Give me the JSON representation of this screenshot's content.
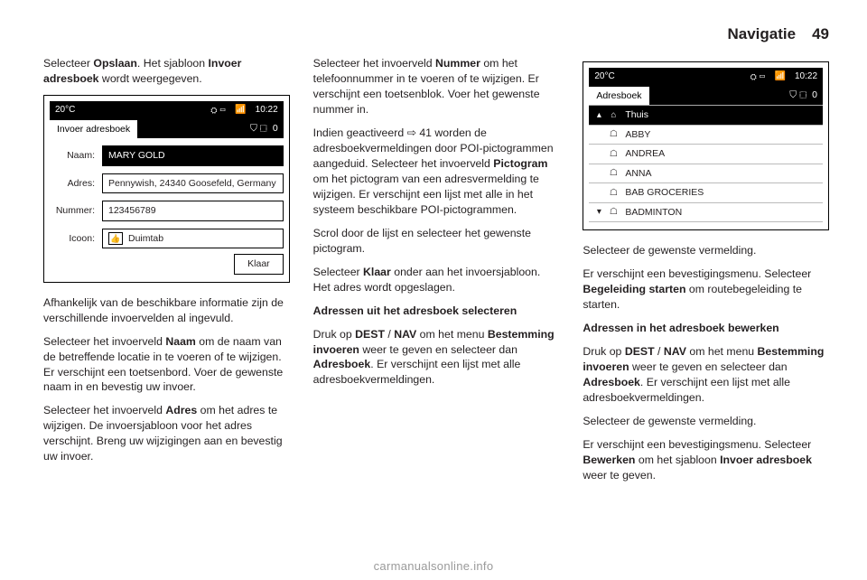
{
  "header": {
    "section": "Navigatie",
    "page": "49"
  },
  "col1": {
    "p1a": "Selecteer ",
    "p1b": "Opslaan",
    "p1c": ". Het sjabloon ",
    "p1d": "Invoer adresboek",
    "p1e": " wordt weergegeven.",
    "p2": "Afhankelijk van de beschikbare informatie zijn de verschillende invoervelden al ingevuld.",
    "p3a": "Selecteer het invoerveld ",
    "p3b": "Naam",
    "p3c": " om de naam van de betreffende locatie in te voeren of te wijzigen. Er verschijnt een toetsenbord. Voer de gewenste naam in en bevestig uw invoer.",
    "p4a": "Selecteer het invoerveld ",
    "p4b": "Adres",
    "p4c": " om het adres te wijzigen. De invoersjabloon voor het adres verschijnt. Breng uw wijzigingen aan en bevestig uw invoer."
  },
  "screenshot1": {
    "temp": "20°C",
    "clock": "10:22",
    "title": "Invoer adresboek",
    "rightnum": "0",
    "fields": {
      "naam_label": "Naam:",
      "naam_value": "MARY GOLD",
      "adres_label": "Adres:",
      "adres_value": "Pennywish, 24340 Goosefeld, Germany",
      "nummer_label": "Nummer:",
      "nummer_value": "123456789",
      "icoon_label": "Icoon:",
      "icoon_value": "Duimtab"
    },
    "footer_btn": "Klaar"
  },
  "col2": {
    "p1a": "Selecteer het invoerveld ",
    "p1b": "Nummer",
    "p1c": " om het telefoonnummer in te voeren of te wijzigen. Er verschijnt een toetsenblok. Voer het gewenste nummer in.",
    "p2a": "Indien geactiveerd ",
    "p2b": "⇨ 41",
    "p2c": " worden de adresboekvermeldingen door POI-pictogrammen aangeduid. Selecteer het invoerveld ",
    "p2d": "Pictogram",
    "p2e": " om het pictogram van een adresvermelding te wijzigen. Er verschijnt een lijst met alle in het systeem beschikbare POI-pictogrammen.",
    "p3": "Scrol door de lijst en selecteer het gewenste pictogram.",
    "p4a": "Selecteer ",
    "p4b": "Klaar",
    "p4c": " onder aan het invoersjabloon. Het adres wordt opgeslagen.",
    "h1": "Adressen uit het adresboek selecteren",
    "p5a": "Druk op ",
    "p5b": "DEST",
    "p5c": " / ",
    "p5d": "NAV",
    "p5e": " om het menu ",
    "p5f": "Bestemming invoeren",
    "p5g": " weer te geven en selecteer dan ",
    "p5h": "Adresboek",
    "p5i": ". Er verschijnt een lijst met alle adresboekvermeldingen."
  },
  "screenshot2": {
    "temp": "20°C",
    "clock": "10:22",
    "title": "Adresboek",
    "rightnum": "0",
    "rows": [
      {
        "label": "Thuis",
        "icon": "house",
        "selected": true
      },
      {
        "label": "ABBY",
        "icon": "contact",
        "selected": false
      },
      {
        "label": "ANDREA",
        "icon": "contact",
        "selected": false
      },
      {
        "label": "ANNA",
        "icon": "contact",
        "selected": false
      },
      {
        "label": "BAB GROCERIES",
        "icon": "contact",
        "selected": false
      },
      {
        "label": "BADMINTON",
        "icon": "contact",
        "selected": false
      }
    ]
  },
  "col3": {
    "p1": "Selecteer de gewenste vermelding.",
    "p2a": "Er verschijnt een bevestigingsmenu. Selecteer ",
    "p2b": "Begeleiding starten",
    "p2c": " om routebegeleiding te starten.",
    "h1": "Adressen in het adresboek bewerken",
    "p3a": "Druk op ",
    "p3b": "DEST",
    "p3c": " / ",
    "p3d": "NAV",
    "p3e": " om het menu ",
    "p3f": "Bestemming invoeren",
    "p3g": " weer te geven en selecteer dan ",
    "p3h": "Adresboek",
    "p3i": ". Er verschijnt een lijst met alle adresboekvermeldingen.",
    "p4": "Selecteer de gewenste vermelding.",
    "p5a": "Er verschijnt een bevestigingsmenu. Selecteer ",
    "p5b": "Bewerken",
    "p5c": " om het sjabloon ",
    "p5d": "Invoer adresboek",
    "p5e": " weer te geven."
  },
  "footer": {
    "url": "carmanualsonline.info"
  }
}
